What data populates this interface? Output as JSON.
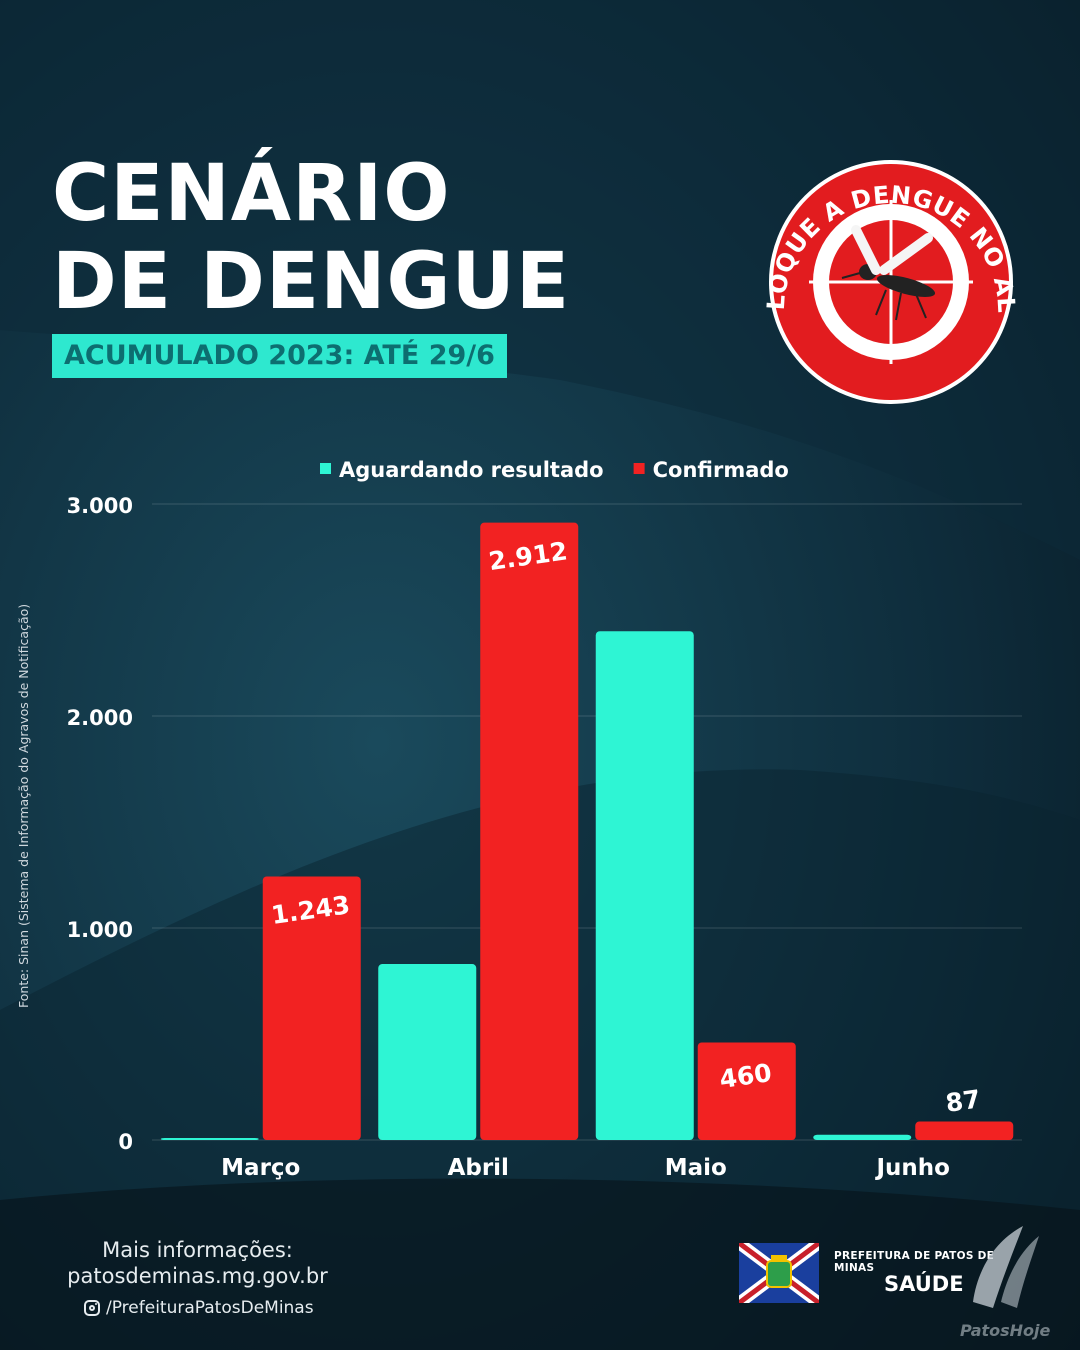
{
  "header": {
    "title_line1": "CENÁRIO",
    "title_line2": "DE DENGUE",
    "subtitle": "ACUMULADO 2023: ATÉ 29/6"
  },
  "logo": {
    "text": "COLOQUE A DENGUE NO ALVO",
    "icon": "mosquito-target-icon",
    "color": "#e21c1f"
  },
  "chart_data": {
    "type": "bar",
    "categories": [
      "Março",
      "Abril",
      "Maio",
      "Junho"
    ],
    "series": [
      {
        "name": "Aguardando resultado",
        "color": "#2ef5d4",
        "values": [
          5,
          830,
          2400,
          25
        ]
      },
      {
        "name": "Confirmado",
        "color": "#f22222",
        "values": [
          1243,
          2912,
          460,
          87
        ]
      }
    ],
    "data_labels": {
      "Confirmado": [
        "1.243",
        "2.912",
        "460",
        "87"
      ]
    },
    "yticks": [
      "0",
      "1.000",
      "2.000",
      "3.000"
    ],
    "ytick_values": [
      0,
      1000,
      2000,
      3000
    ],
    "ylim": [
      0,
      3000
    ],
    "grid": true,
    "legend_position": "top",
    "title": "",
    "xlabel": "",
    "ylabel": ""
  },
  "source": "Fonte: Sinan (Sistema de Informação do Agravos de Notificação)",
  "footer": {
    "more_info_line1": "Mais informações:",
    "more_info_line2": "patosdeminas.mg.gov.br",
    "instagram": "/PrefeituraPatosDeMinas",
    "instagram_icon": "instagram-icon",
    "prefeitura": "PREFEITURA DE PATOS DE MINAS",
    "saude": "SAÚDE",
    "watermark": "PatosHoje"
  }
}
